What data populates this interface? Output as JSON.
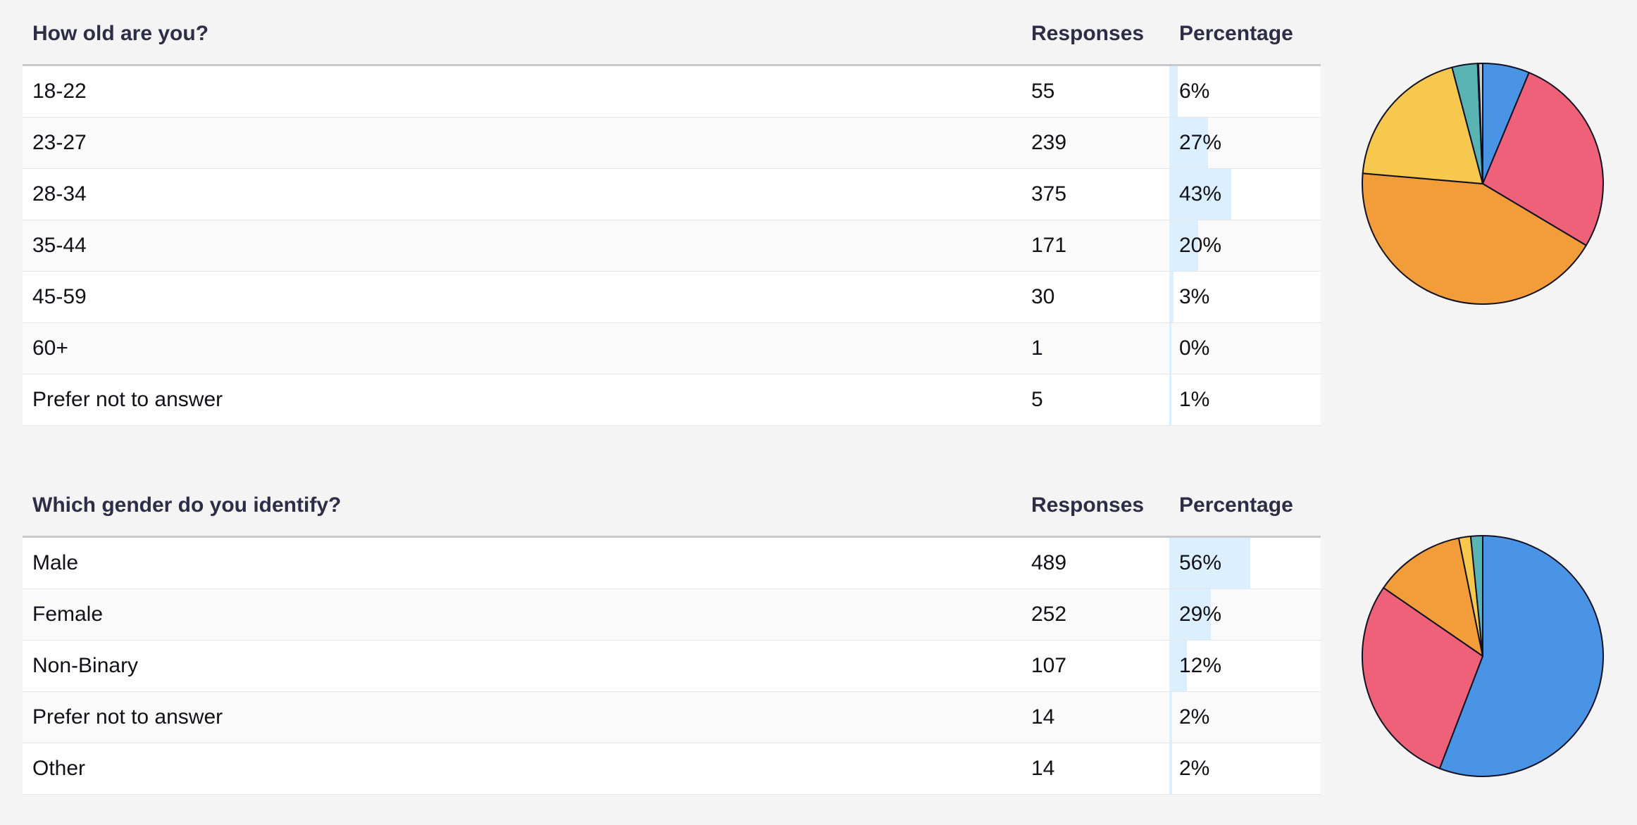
{
  "surveys": [
    {
      "question": "How old are you?",
      "col_responses": "Responses",
      "col_percentage": "Percentage",
      "rows": [
        {
          "label": "18-22",
          "responses": "55",
          "percentage": "6%"
        },
        {
          "label": "23-27",
          "responses": "239",
          "percentage": "27%"
        },
        {
          "label": "28-34",
          "responses": "375",
          "percentage": "43%"
        },
        {
          "label": "35-44",
          "responses": "171",
          "percentage": "20%"
        },
        {
          "label": "45-59",
          "responses": "30",
          "percentage": "3%"
        },
        {
          "label": "60+",
          "responses": "1",
          "percentage": "0%"
        },
        {
          "label": "Prefer not to answer",
          "responses": "5",
          "percentage": "1%"
        }
      ]
    },
    {
      "question": "Which gender do you identify?",
      "col_responses": "Responses",
      "col_percentage": "Percentage",
      "rows": [
        {
          "label": "Male",
          "responses": "489",
          "percentage": "56%"
        },
        {
          "label": "Female",
          "responses": "252",
          "percentage": "29%"
        },
        {
          "label": "Non-Binary",
          "responses": "107",
          "percentage": "12%"
        },
        {
          "label": "Prefer not to answer",
          "responses": "14",
          "percentage": "2%"
        },
        {
          "label": "Other",
          "responses": "14",
          "percentage": "2%"
        }
      ]
    }
  ],
  "chart_data": [
    {
      "type": "pie",
      "categories": [
        "18-22",
        "23-27",
        "28-34",
        "35-44",
        "45-59",
        "60+",
        "Prefer not to answer"
      ],
      "values": [
        55,
        239,
        375,
        171,
        30,
        1,
        5
      ],
      "colors": [
        "#4a94e6",
        "#ef6079",
        "#f29c3a",
        "#f6c84e",
        "#5bb4b4",
        "#9a6fcf",
        "#cccccc"
      ]
    },
    {
      "type": "pie",
      "categories": [
        "Male",
        "Female",
        "Non-Binary",
        "Prefer not to answer",
        "Other"
      ],
      "values": [
        489,
        252,
        107,
        14,
        14
      ],
      "colors": [
        "#4a94e6",
        "#ef6079",
        "#f29c3a",
        "#f6c84e",
        "#5bb4b4"
      ]
    }
  ],
  "bar_color": "#dcefff",
  "slice_stroke": "#111122"
}
